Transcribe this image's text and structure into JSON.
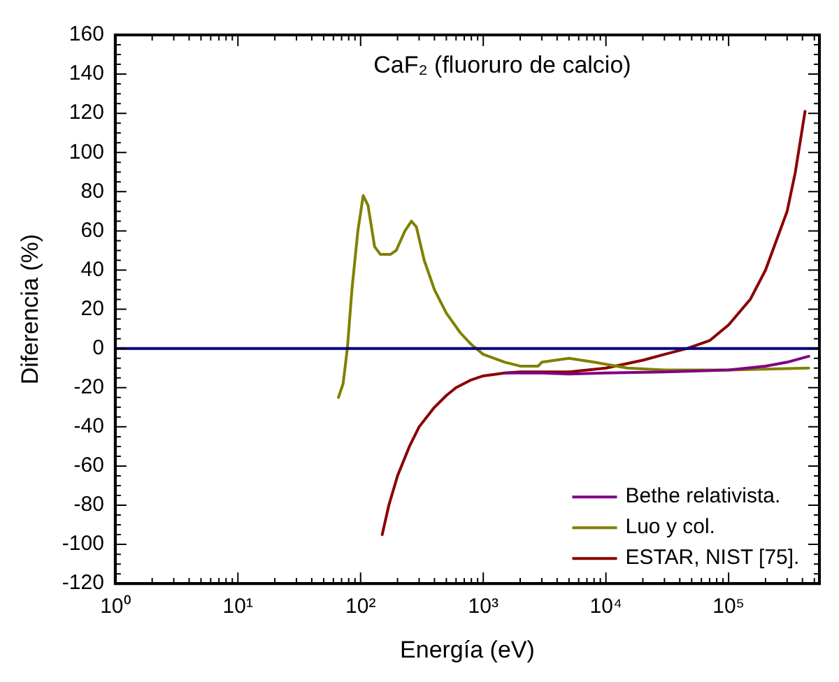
{
  "chart_data": {
    "type": "line",
    "title": "CaF₂ (fluoruro de calcio)",
    "xlabel": "Energía (eV)",
    "ylabel": "Diferencia (%)",
    "log": "x",
    "xlim": [
      1,
      550000
    ],
    "xticks": [
      {
        "value": 1,
        "label": "10⁰"
      },
      {
        "value": 10,
        "label": "10¹"
      },
      {
        "value": 100,
        "label": "10²"
      },
      {
        "value": 1000,
        "label": "10³"
      },
      {
        "value": 10000,
        "label": "10⁴"
      },
      {
        "value": 100000,
        "label": "10⁵"
      }
    ],
    "ylim": [
      -120,
      160
    ],
    "yticks": [
      -120,
      -100,
      -80,
      -60,
      -40,
      -20,
      0,
      20,
      40,
      60,
      80,
      100,
      120,
      140,
      160
    ],
    "grid": false,
    "legend": "bottom right",
    "marker": "none",
    "line_style": "solid",
    "ref_lines": [
      {
        "axis": "y",
        "value": 0,
        "color": "#000080"
      }
    ],
    "series": [
      {
        "name": "Bethe relativista.",
        "color": "#800080",
        "x": [
          1500,
          3000,
          5000,
          10000,
          30000,
          100000,
          200000,
          300000,
          450000
        ],
        "values": [
          -12.5,
          -12.5,
          -13,
          -12.5,
          -12,
          -11,
          -9,
          -7,
          -4
        ]
      },
      {
        "name": "Luo y col.",
        "color": "#808000",
        "x": [
          66,
          72,
          78,
          85,
          95,
          105,
          115,
          130,
          145,
          175,
          195,
          230,
          260,
          285,
          330,
          400,
          500,
          650,
          800,
          1000,
          1500,
          2000,
          2800,
          3000,
          5000,
          8000,
          15000,
          30000,
          100000,
          450000
        ],
        "values": [
          -25,
          -18,
          0,
          30,
          60,
          78,
          73,
          52,
          48,
          48,
          50,
          60,
          65,
          62,
          45,
          30,
          18,
          8,
          2,
          -3,
          -7,
          -9,
          -9,
          -7,
          -5,
          -7,
          -10,
          -11,
          -11,
          -10
        ]
      },
      {
        "name": "ESTAR, NIST [75].",
        "color": "#8b0000",
        "x": [
          150,
          170,
          200,
          250,
          300,
          400,
          500,
          600,
          800,
          1000,
          1500,
          2000,
          5000,
          10000,
          20000,
          30000,
          46000,
          70000,
          100000,
          150000,
          200000,
          300000,
          350000,
          420000
        ],
        "values": [
          -95,
          -80,
          -65,
          -50,
          -40,
          -30,
          -24,
          -20,
          -16,
          -14,
          -12.5,
          -12,
          -12,
          -10,
          -6,
          -3,
          0,
          4,
          12,
          25,
          40,
          70,
          90,
          121
        ]
      }
    ]
  }
}
